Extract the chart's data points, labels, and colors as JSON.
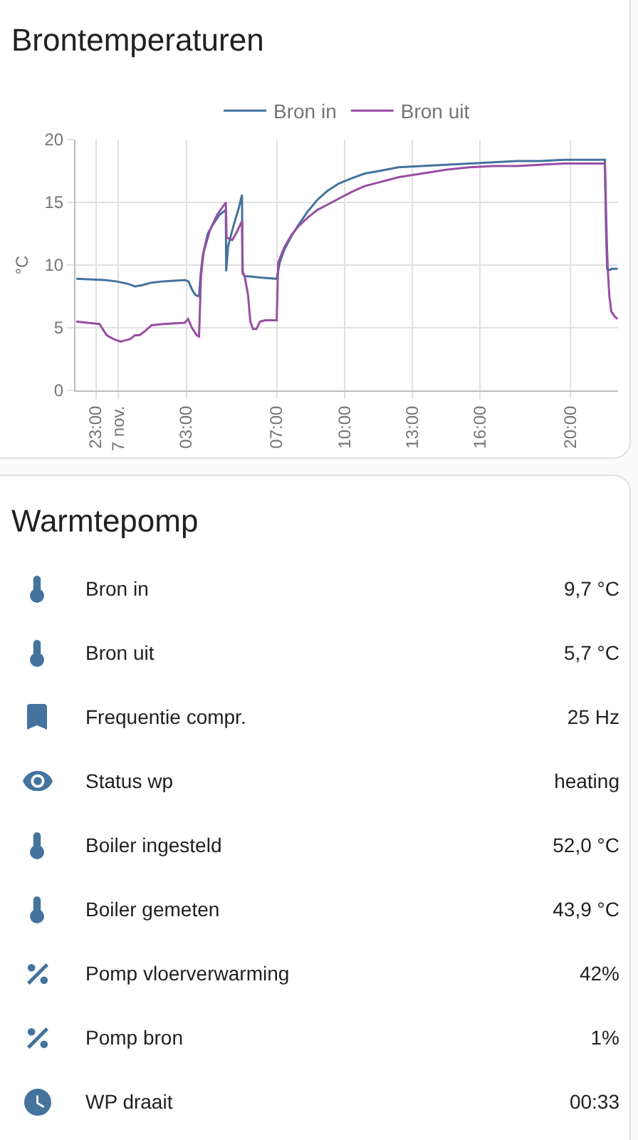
{
  "chart_data": [
    {
      "type": "line",
      "title": "Brontemperaturen",
      "ylabel": "°C",
      "xlim": [
        "--11-06T22:06",
        "--11-07T22:06"
      ],
      "xticks": [
        {
          "value": "--11-06T23:00",
          "label": "23:00"
        },
        {
          "value": "--11-07",
          "label": "7 nov."
        },
        {
          "value": "--11-07T03:00",
          "label": "03:00"
        },
        {
          "value": "--11-07T07:00",
          "label": "07:00"
        },
        {
          "value": "--11-07T10:00",
          "label": "10:00"
        },
        {
          "value": "--11-07T13:00",
          "label": "13:00"
        },
        {
          "value": "--11-07T16:00",
          "label": "16:00"
        },
        {
          "value": "--11-07T20:00",
          "label": "20:00"
        }
      ],
      "ylim": [
        0,
        20
      ],
      "yticks": [
        0,
        5,
        10,
        15,
        20
      ],
      "grid": true,
      "legend": "top",
      "series": [
        {
          "name": "Bron in",
          "color": "#44739e",
          "x": [
            "--11-06T22:08",
            "--11-06T23:22",
            "--11-06T23:54",
            "--11-07T00:25",
            "--11-07T00:44",
            "--11-07T01:03",
            "--11-07T01:28",
            "--11-07T01:59",
            "--11-07T02:56",
            "--11-07T03:06",
            "--11-07T03:16",
            "--11-07T03:25",
            "--11-07T03:34",
            "--11-07T03:38",
            "--11-07T03:44",
            "--11-07T03:57",
            "--11-07T04:10",
            "--11-07T04:28",
            "--11-07T04:45",
            "--11-07T04:46",
            "--11-07T04:51",
            "--11-07T05:06",
            "--11-07T05:19",
            "--11-07T05:28",
            "--11-07T05:29",
            "--11-07T05:35",
            "--11-07T05:44",
            "--11-07T06:16",
            "--11-07T07:00",
            "--11-07T07:08",
            "--11-07T07:20",
            "--11-07T07:39",
            "--11-07T07:58",
            "--11-07T08:23",
            "--11-07T08:48",
            "--11-07T09:14",
            "--11-07T09:45",
            "--11-07T10:17",
            "--11-07T10:54",
            "--11-07T11:32",
            "--11-07T12:23",
            "--11-07T13:26",
            "--11-07T14:29",
            "--11-07T15:32",
            "--11-07T16:35",
            "--11-07T17:38",
            "--11-07T18:41",
            "--11-07T19:44",
            "--11-07T21:31",
            "--11-07T21:34",
            "--11-07T21:37",
            "--11-07T21:43",
            "--11-07T21:50",
            "--11-07T22:05"
          ],
          "values": [
            8.9,
            8.8,
            8.7,
            8.5,
            8.3,
            8.4,
            8.6,
            8.7,
            8.8,
            8.7,
            8.0,
            7.6,
            7.5,
            9.2,
            10.8,
            12.5,
            13.2,
            14.0,
            14.4,
            9.5,
            11.5,
            13.2,
            14.5,
            15.6,
            9.5,
            9.1,
            9.1,
            9.0,
            8.9,
            10.2,
            11.2,
            12.3,
            13.2,
            14.3,
            15.2,
            15.9,
            16.5,
            16.9,
            17.3,
            17.5,
            17.8,
            17.9,
            18.0,
            18.1,
            18.2,
            18.3,
            18.3,
            18.4,
            18.4,
            12.9,
            9.7,
            9.6,
            9.7,
            9.7
          ]
        },
        {
          "name": "Bron uit",
          "color": "#984ea3",
          "x": [
            "--11-06T22:08",
            "--11-06T22:38",
            "--11-06T23:10",
            "--11-06T23:16",
            "--11-06T23:29",
            "--11-06T23:47",
            "--11-07T00:06",
            "--11-07T00:19",
            "--11-07T00:31",
            "--11-07T00:44",
            "--11-07T00:56",
            "--11-07T01:09",
            "--11-07T01:28",
            "--11-07T01:59",
            "--11-07T02:56",
            "--11-07T03:05",
            "--11-07T03:15",
            "--11-07T03:28",
            "--11-07T03:34",
            "--11-07T03:39",
            "--11-07T03:46",
            "--11-07T04:03",
            "--11-07T04:22",
            "--11-07T04:45",
            "--11-07T04:47",
            "--11-07T05:02",
            "--11-07T05:12",
            "--11-07T05:28",
            "--11-07T05:30",
            "--11-07T05:35",
            "--11-07T05:44",
            "--11-07T05:50",
            "--11-07T05:57",
            "--11-07T06:06",
            "--11-07T06:16",
            "--11-07T06:30",
            "--11-07T07:00",
            "--11-07T07:04",
            "--11-07T07:20",
            "--11-07T07:39",
            "--11-07T07:58",
            "--11-07T08:23",
            "--11-07T08:48",
            "--11-07T09:14",
            "--11-07T09:45",
            "--11-07T10:17",
            "--11-07T10:54",
            "--11-07T11:32",
            "--11-07T12:23",
            "--11-07T13:26",
            "--11-07T14:29",
            "--11-07T15:32",
            "--11-07T16:35",
            "--11-07T17:38",
            "--11-07T18:41",
            "--11-07T19:44",
            "--11-07T21:31",
            "--11-07T21:36",
            "--11-07T21:39",
            "--11-07T21:43",
            "--11-07T21:48",
            "--11-07T21:57",
            "--11-07T22:05"
          ],
          "values": [
            5.5,
            5.4,
            5.3,
            5.0,
            4.4,
            4.1,
            3.9,
            4.0,
            4.1,
            4.4,
            4.4,
            4.7,
            5.2,
            5.3,
            5.4,
            5.7,
            5.0,
            4.4,
            4.3,
            9.1,
            11.0,
            12.8,
            14.0,
            15.0,
            12.2,
            12.0,
            12.5,
            13.5,
            9.3,
            9.1,
            7.6,
            5.5,
            4.9,
            4.9,
            5.5,
            5.6,
            5.6,
            10.2,
            11.4,
            12.4,
            13.1,
            13.8,
            14.4,
            14.8,
            15.3,
            15.8,
            16.3,
            16.6,
            17.0,
            17.3,
            17.6,
            17.8,
            17.9,
            17.9,
            18.0,
            18.1,
            18.1,
            12.0,
            9.5,
            7.5,
            6.3,
            5.9,
            5.7
          ]
        }
      ]
    },
    {
      "type": "other",
      "title": "Warmtepomp",
      "annotations": [
        "Bron in",
        "9,7 °C",
        "Bron uit",
        "5,7 °C",
        "Frequentie compr.",
        "25 Hz",
        "Status wp",
        "heating",
        "Boiler ingesteld",
        "52,0 °C",
        "Boiler gemeten",
        "43,9 °C",
        "Pomp vloerverwarming",
        "42%",
        "Pomp bron",
        "1%",
        "WP draait",
        "00:33"
      ]
    }
  ]
}
